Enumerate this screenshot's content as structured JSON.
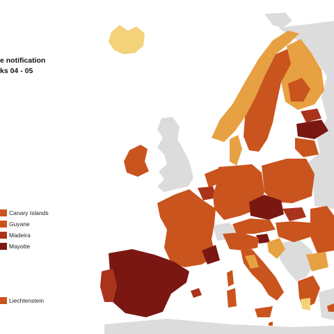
{
  "title": {
    "line1": "e notification",
    "line2": "ks  04 - 05"
  },
  "colors": {
    "very_dark": "#7a1712",
    "dark": "#a9341b",
    "medium": "#c9541e",
    "light": "#e7a042",
    "pale": "#f4d27a",
    "no_data": "#dcdcdc",
    "sea": "#ffffff"
  },
  "legend_outermost": [
    {
      "label": "Canary Islands",
      "color": "#c9541e"
    },
    {
      "label": "Guyane",
      "color": "#c9541e"
    },
    {
      "label": "Madeira",
      "color": "#a9341b"
    },
    {
      "label": "Mayotte",
      "color": "#7a1712"
    }
  ],
  "legend_other": [
    {
      "label": "Liechtenstein",
      "color": "#c9541e"
    }
  ]
}
